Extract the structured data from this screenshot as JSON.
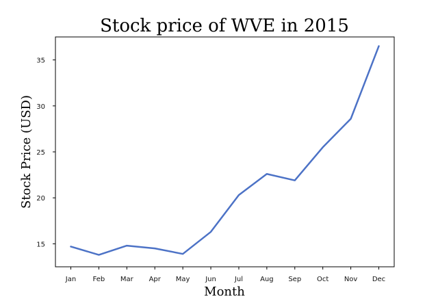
{
  "chart_data": {
    "type": "line",
    "title": "Stock price of WVE in 2015",
    "xlabel": "Month",
    "ylabel": "Stock Price (USD)",
    "categories": [
      "Jan",
      "Feb",
      "Mar",
      "Apr",
      "May",
      "Jun",
      "Jul",
      "Aug",
      "Sep",
      "Oct",
      "Nov",
      "Dec"
    ],
    "series": [
      {
        "values": [
          14.7,
          13.8,
          14.8,
          14.5,
          13.9,
          16.3,
          20.3,
          22.6,
          21.9,
          25.5,
          28.6,
          36.5
        ],
        "color": "#4c72c6"
      }
    ],
    "yticks": [
      15,
      20,
      25,
      30,
      35
    ],
    "ylim": [
      12.5,
      37.5
    ],
    "grid": false,
    "legend": false
  }
}
